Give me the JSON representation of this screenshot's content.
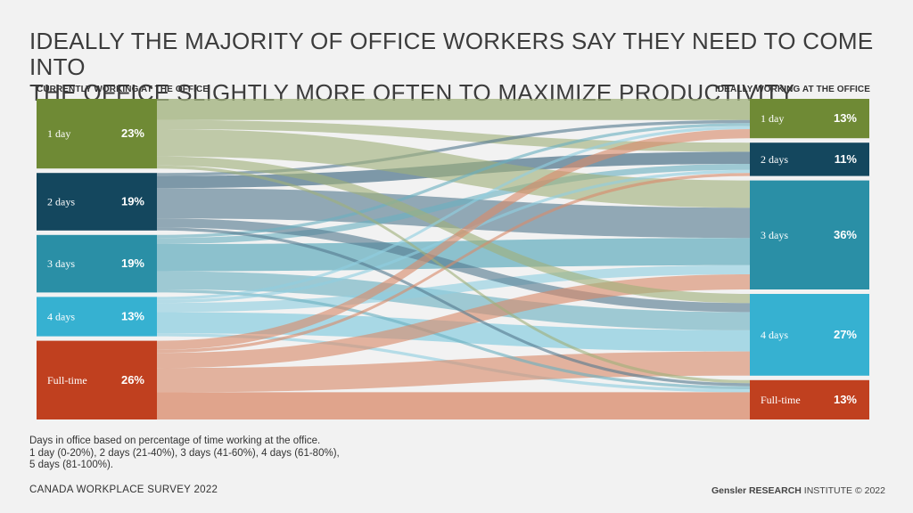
{
  "title": {
    "line1": "IDEALLY THE MAJORITY OF OFFICE WORKERS SAY THEY NEED TO COME INTO",
    "line2": "THE OFFICE SLIGHTLY MORE OFTEN TO MAXIMIZE PRODUCTIVITY"
  },
  "left_heading": "CURRENTLY WORKING AT THE OFFICE",
  "right_heading": "IDEALLY WORKING AT THE OFFICE",
  "chart_data": {
    "type": "sankey",
    "left_nodes": [
      {
        "label": "1 day",
        "value": "23%",
        "color": "#6f8a35",
        "flow": "#9fb07a"
      },
      {
        "label": "2 days",
        "value": "19%",
        "color": "#14475e",
        "flow": "#557a8f"
      },
      {
        "label": "3 days",
        "value": "19%",
        "color": "#2a8fa6",
        "flow": "#6ab0c0"
      },
      {
        "label": "4 days",
        "value": "13%",
        "color": "#36b1d1",
        "flow": "#8fcfe0"
      },
      {
        "label": "Full-time",
        "value": "26%",
        "color": "#c0401f",
        "flow": "#d98a6a"
      }
    ],
    "right_nodes": [
      {
        "label": "1 day",
        "value": "13%",
        "color": "#6f8a35"
      },
      {
        "label": "2 days",
        "value": "11%",
        "color": "#14475e"
      },
      {
        "label": "3 days",
        "value": "36%",
        "color": "#2a8fa6"
      },
      {
        "label": "4 days",
        "value": "27%",
        "color": "#36b1d1"
      },
      {
        "label": "Full-time",
        "value": "13%",
        "color": "#c0401f"
      }
    ],
    "flows": [
      {
        "from": 0,
        "to": 0,
        "value": 7
      },
      {
        "from": 0,
        "to": 1,
        "value": 3
      },
      {
        "from": 0,
        "to": 2,
        "value": 9
      },
      {
        "from": 0,
        "to": 3,
        "value": 3
      },
      {
        "from": 0,
        "to": 4,
        "value": 1
      },
      {
        "from": 1,
        "to": 0,
        "value": 1
      },
      {
        "from": 1,
        "to": 1,
        "value": 4
      },
      {
        "from": 1,
        "to": 2,
        "value": 10
      },
      {
        "from": 1,
        "to": 3,
        "value": 3
      },
      {
        "from": 1,
        "to": 4,
        "value": 1
      },
      {
        "from": 2,
        "to": 0,
        "value": 1
      },
      {
        "from": 2,
        "to": 1,
        "value": 2
      },
      {
        "from": 2,
        "to": 2,
        "value": 9
      },
      {
        "from": 2,
        "to": 3,
        "value": 6
      },
      {
        "from": 2,
        "to": 4,
        "value": 1
      },
      {
        "from": 3,
        "to": 0,
        "value": 1
      },
      {
        "from": 3,
        "to": 1,
        "value": 1
      },
      {
        "from": 3,
        "to": 2,
        "value": 3
      },
      {
        "from": 3,
        "to": 3,
        "value": 7
      },
      {
        "from": 3,
        "to": 4,
        "value": 1
      },
      {
        "from": 4,
        "to": 0,
        "value": 3
      },
      {
        "from": 4,
        "to": 1,
        "value": 1
      },
      {
        "from": 4,
        "to": 2,
        "value": 5
      },
      {
        "from": 4,
        "to": 3,
        "value": 8
      },
      {
        "from": 4,
        "to": 4,
        "value": 9
      }
    ]
  },
  "footnote": {
    "line1": "Days in office based on percentage of time working at the office.",
    "line2": "1 day (0-20%), 2 days (21-40%), 3 days (41-60%), 4 days (61-80%),",
    "line3": "5 days (81-100%)."
  },
  "survey": "CANADA WORKPLACE SURVEY 2022",
  "brand": {
    "strong": "Gensler RESEARCH",
    "rest": " INSTITUTE © 2022"
  }
}
